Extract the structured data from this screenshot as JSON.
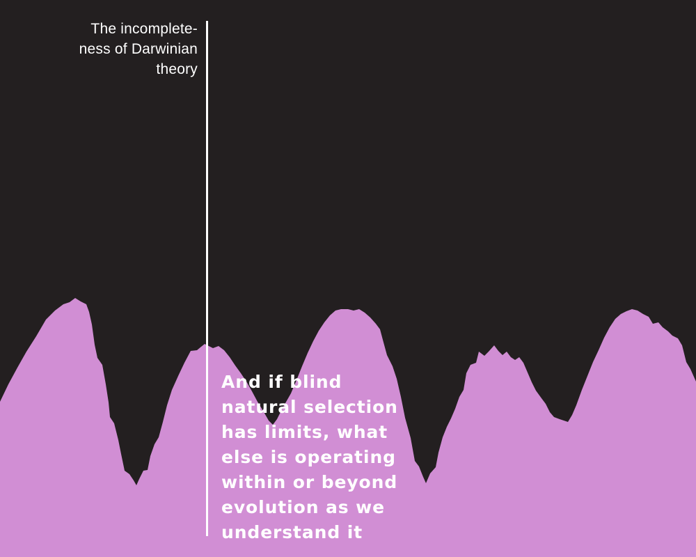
{
  "label": {
    "text": "The incomplete-\nness of Darwinian\ntheory"
  },
  "quote": {
    "text": "And if blind\nnatural selection\nhas limits, what\nelse is operating\nwithin or beyond\nevolution as we\nunderstand it"
  },
  "colors": {
    "background": "#231f20",
    "terrain": "#d18ed4",
    "text": "#ffffff"
  }
}
